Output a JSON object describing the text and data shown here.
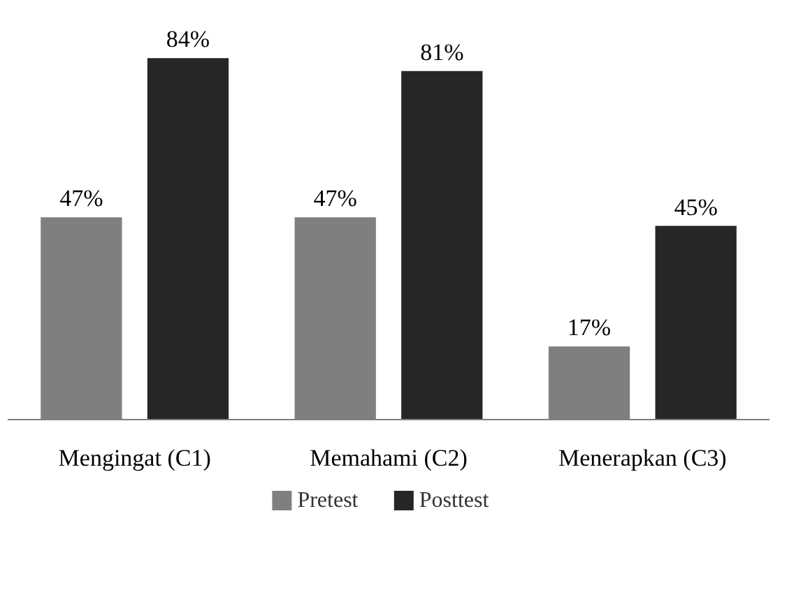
{
  "chart_data": {
    "type": "bar",
    "categories": [
      "Mengingat (C1)",
      "Memahami (C2)",
      "Menerapkan (C3)"
    ],
    "series": [
      {
        "name": "Pretest",
        "color": "#7f7f7f",
        "values": [
          47,
          47,
          17
        ],
        "value_labels": [
          "47%",
          "47%",
          "17%"
        ]
      },
      {
        "name": "Posttest",
        "color": "#262626",
        "values": [
          84,
          81,
          45
        ],
        "value_labels": [
          "84%",
          "81%",
          "45%"
        ]
      }
    ],
    "legend": "bottom"
  }
}
